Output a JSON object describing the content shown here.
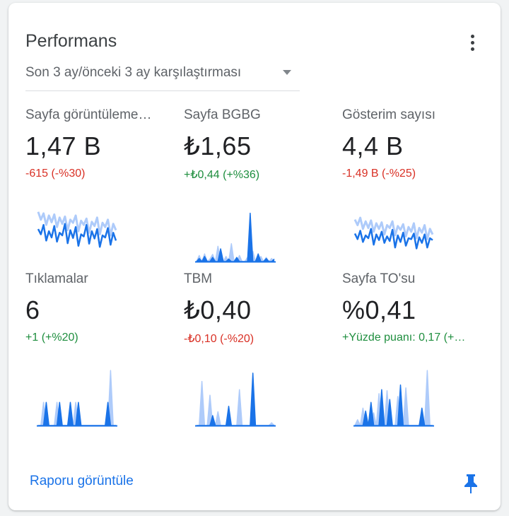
{
  "card": {
    "title": "Performans",
    "comparison_selector": {
      "label": "Son 3 ay/önceki 3 ay karşılaştırması",
      "icon": "dropdown-arrow-icon"
    },
    "menu_icon": "more-vert-icon",
    "footer_link": "Raporu görüntüle",
    "pin_icon": "pin-icon"
  },
  "colors": {
    "current": "#1a73e8",
    "previous": "#aecbfa",
    "positive": "#1e8e3e",
    "negative": "#d93025",
    "link": "#1a73e8"
  },
  "metrics": [
    {
      "label": "Sayfa görüntüleme…",
      "value": "1,47 B",
      "delta": "-615 (-%30)",
      "trend": "down",
      "spark": {
        "current": [
          0.62,
          0.52,
          0.7,
          0.4,
          0.58,
          0.46,
          0.68,
          0.38,
          0.55,
          0.5,
          0.72,
          0.35,
          0.6,
          0.45,
          0.66,
          0.3,
          0.52,
          0.48,
          0.7,
          0.34,
          0.58,
          0.44,
          0.62,
          0.28,
          0.5,
          0.46,
          0.64,
          0.32,
          0.55,
          0.4
        ],
        "previous": [
          0.95,
          0.8,
          0.92,
          0.7,
          0.88,
          0.75,
          0.9,
          0.66,
          0.84,
          0.72,
          0.86,
          0.6,
          0.8,
          0.74,
          0.88,
          0.58,
          0.78,
          0.7,
          0.82,
          0.55,
          0.76,
          0.68,
          0.84,
          0.52,
          0.74,
          0.66,
          0.8,
          0.5,
          0.72,
          0.6
        ]
      }
    },
    {
      "label": "Sayfa BGBG",
      "value": "₺1,65",
      "delta": "+₺0,44 (+%36)",
      "trend": "up",
      "spark": {
        "current": [
          0,
          0.06,
          0,
          0.1,
          0,
          0,
          0.08,
          0,
          0,
          0.25,
          0,
          0,
          0.05,
          0,
          0,
          0.08,
          0,
          0,
          0,
          0,
          0.95,
          0,
          0,
          0.15,
          0,
          0,
          0.06,
          0,
          0,
          0.05
        ],
        "previous": [
          0,
          0.12,
          0,
          0.15,
          0,
          0.05,
          0.14,
          0,
          0.3,
          0,
          0,
          0.1,
          0,
          0.35,
          0,
          0,
          0.12,
          0,
          0,
          0.08,
          0,
          0.2,
          0,
          0,
          0.1,
          0,
          0.08,
          0,
          0.06,
          0
        ]
      }
    },
    {
      "label": "Gösterim sayısı",
      "value": "4,4 B",
      "delta": "-1,49 B (-%25)",
      "trend": "down",
      "spark": {
        "current": [
          0.6,
          0.48,
          0.66,
          0.42,
          0.56,
          0.5,
          0.7,
          0.36,
          0.58,
          0.46,
          0.64,
          0.4,
          0.54,
          0.44,
          0.68,
          0.3,
          0.56,
          0.42,
          0.62,
          0.34,
          0.5,
          0.48,
          0.6,
          0.28,
          0.52,
          0.4,
          0.58,
          0.3,
          0.5,
          0.46
        ],
        "previous": [
          0.9,
          0.78,
          0.94,
          0.7,
          0.86,
          0.72,
          0.88,
          0.64,
          0.82,
          0.7,
          0.84,
          0.58,
          0.78,
          0.72,
          0.86,
          0.56,
          0.76,
          0.68,
          0.8,
          0.54,
          0.74,
          0.64,
          0.82,
          0.5,
          0.72,
          0.62,
          0.78,
          0.48,
          0.7,
          0.58
        ]
      }
    },
    {
      "label": "Tıklamalar",
      "value": "6",
      "delta": "+1 (+%20)",
      "trend": "up",
      "spark": {
        "current": [
          0,
          0,
          0,
          0.4,
          0,
          0,
          0,
          0,
          0.4,
          0,
          0,
          0,
          0.4,
          0,
          0,
          0.4,
          0,
          0,
          0,
          0,
          0,
          0,
          0,
          0,
          0,
          0,
          0.4,
          0,
          0,
          0
        ],
        "previous": [
          0,
          0,
          0.4,
          0,
          0,
          0,
          0,
          0.4,
          0,
          0,
          0,
          0,
          0,
          0,
          0.4,
          0,
          0,
          0,
          0,
          0,
          0,
          0,
          0,
          0,
          0,
          0,
          0,
          0.95,
          0,
          0
        ]
      }
    },
    {
      "label": "TBM",
      "value": "₺0,40",
      "delta": "-₺0,10 (-%20)",
      "trend": "down",
      "spark": {
        "current": [
          0,
          0,
          0,
          0,
          0,
          0,
          0.18,
          0,
          0,
          0,
          0,
          0,
          0.35,
          0,
          0,
          0,
          0,
          0,
          0,
          0,
          0,
          0.95,
          0,
          0,
          0,
          0,
          0,
          0,
          0,
          0
        ],
        "previous": [
          0,
          0,
          0.8,
          0,
          0,
          0.55,
          0,
          0,
          0.25,
          0,
          0,
          0,
          0,
          0,
          0,
          0,
          0.65,
          0,
          0,
          0,
          0,
          0,
          0,
          0,
          0,
          0,
          0,
          0,
          0.05,
          0
        ]
      }
    },
    {
      "label": "Sayfa TO'su",
      "value": "%0,41",
      "delta": "+Yüzde puanı: 0,17 (+…",
      "trend": "up",
      "spark": {
        "current": [
          0,
          0,
          0,
          0,
          0.25,
          0,
          0.4,
          0,
          0,
          0,
          0.62,
          0,
          0,
          0.45,
          0,
          0,
          0,
          0.7,
          0,
          0,
          0,
          0,
          0,
          0,
          0,
          0.3,
          0,
          0,
          0,
          0
        ],
        "previous": [
          0,
          0.1,
          0,
          0.3,
          0,
          0,
          0,
          0.22,
          0,
          0.55,
          0,
          0,
          0.6,
          0,
          0,
          0,
          0.5,
          0,
          0,
          0.65,
          0,
          0,
          0,
          0,
          0,
          0,
          0,
          0.95,
          0,
          0
        ]
      }
    }
  ]
}
